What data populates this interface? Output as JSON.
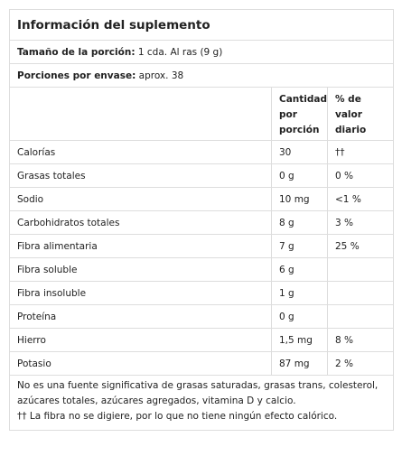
{
  "title": "Información del suplemento",
  "serving_size": {
    "label": "Tamaño de la porción:",
    "value": "1 cda. Al ras (9 g)"
  },
  "servings_per_container": {
    "label": "Porciones por envase:",
    "value": "aprox. 38"
  },
  "table": {
    "header": [
      "Cantidad por porción",
      "% de valor diario"
    ],
    "rows": [
      {
        "name": "Calorías",
        "amount": "30",
        "dv": "††"
      },
      {
        "name": "Grasas totales",
        "amount": "0 g",
        "dv": "0 %"
      },
      {
        "name": "Sodio",
        "amount": "10 mg",
        "dv": "<1 %"
      },
      {
        "name": "Carbohidratos totales",
        "amount": "8 g",
        "dv": "3 %"
      },
      {
        "name": "Fibra alimentaria",
        "amount": "7 g",
        "dv": "25 %"
      },
      {
        "name": "Fibra soluble",
        "amount": "6 g"
      },
      {
        "name": "Fibra insoluble",
        "amount": "1 g"
      },
      {
        "name": "Proteína",
        "amount": "0 g"
      },
      {
        "name": "Hierro",
        "amount": "1,5 mg",
        "dv": "8 %"
      },
      {
        "name": "Potasio",
        "amount": "87 mg",
        "dv": "2 %"
      }
    ]
  },
  "footnotes": [
    "No es una fuente significativa de grasas saturadas, grasas trans, colesterol, azúcares totales, azúcares agregados, vitamina D y calcio.",
    "†† La fibra no se digiere, por lo que no tiene ningún efecto calórico."
  ]
}
